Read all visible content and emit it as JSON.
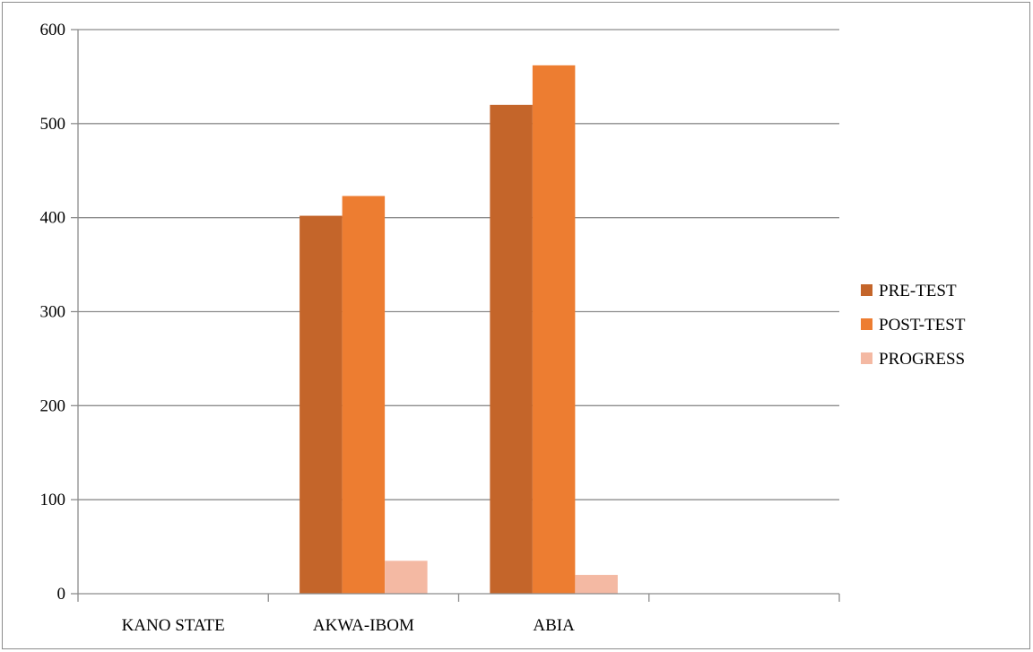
{
  "chart_data": {
    "type": "bar",
    "categories": [
      "KANO STATE",
      "AKWA-IBOM",
      "ABIA",
      ""
    ],
    "series": [
      {
        "name": "PRE-TEST",
        "color": "#C4652A",
        "values": [
          0,
          402,
          520,
          0
        ]
      },
      {
        "name": "POST-TEST",
        "color": "#ED7D31",
        "values": [
          0,
          423,
          562,
          0
        ]
      },
      {
        "name": "PROGRESS",
        "color": "#F4B9A3",
        "values": [
          0,
          35,
          20,
          0
        ]
      }
    ],
    "ylim": [
      0,
      600
    ],
    "yticks": [
      0,
      100,
      200,
      300,
      400,
      500,
      600
    ],
    "grid": true,
    "legend_position": "right",
    "gridline_color": "#8c8c8c"
  }
}
